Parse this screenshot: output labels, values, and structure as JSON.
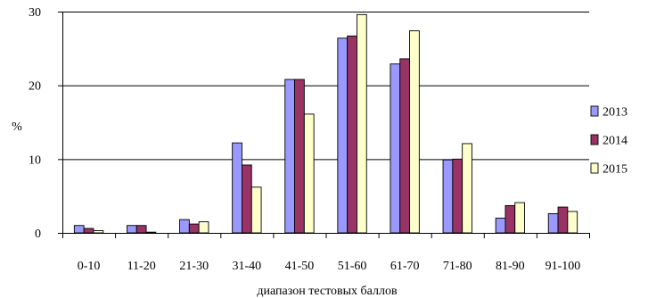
{
  "chart_data": {
    "type": "bar",
    "title": "",
    "xlabel": "диапазон тестовых баллов",
    "ylabel": "%",
    "ylim": [
      0,
      30
    ],
    "yticks": [
      0,
      10,
      20,
      30
    ],
    "grid": true,
    "legend_position": "right",
    "categories": [
      "0-10",
      "11-20",
      "21-30",
      "31-40",
      "41-50",
      "51-60",
      "61-70",
      "71-80",
      "81-90",
      "91-100"
    ],
    "series": [
      {
        "name": "2013",
        "color": "#9999FF",
        "values": [
          1.0,
          1.0,
          1.8,
          12.2,
          20.8,
          26.4,
          22.9,
          9.9,
          2.0,
          2.6
        ]
      },
      {
        "name": "2014",
        "color": "#993366",
        "values": [
          0.6,
          1.0,
          1.2,
          9.2,
          20.8,
          26.7,
          23.6,
          10.0,
          3.7,
          3.5
        ]
      },
      {
        "name": "2015",
        "color": "#FFFFCC",
        "values": [
          0.3,
          0.1,
          1.5,
          6.2,
          16.1,
          29.6,
          27.4,
          12.1,
          4.1,
          2.9
        ]
      }
    ]
  },
  "colors": {
    "bar_stroke": "#000000",
    "grid": "#000000",
    "axis": "#000000",
    "background": "#ffffff"
  }
}
